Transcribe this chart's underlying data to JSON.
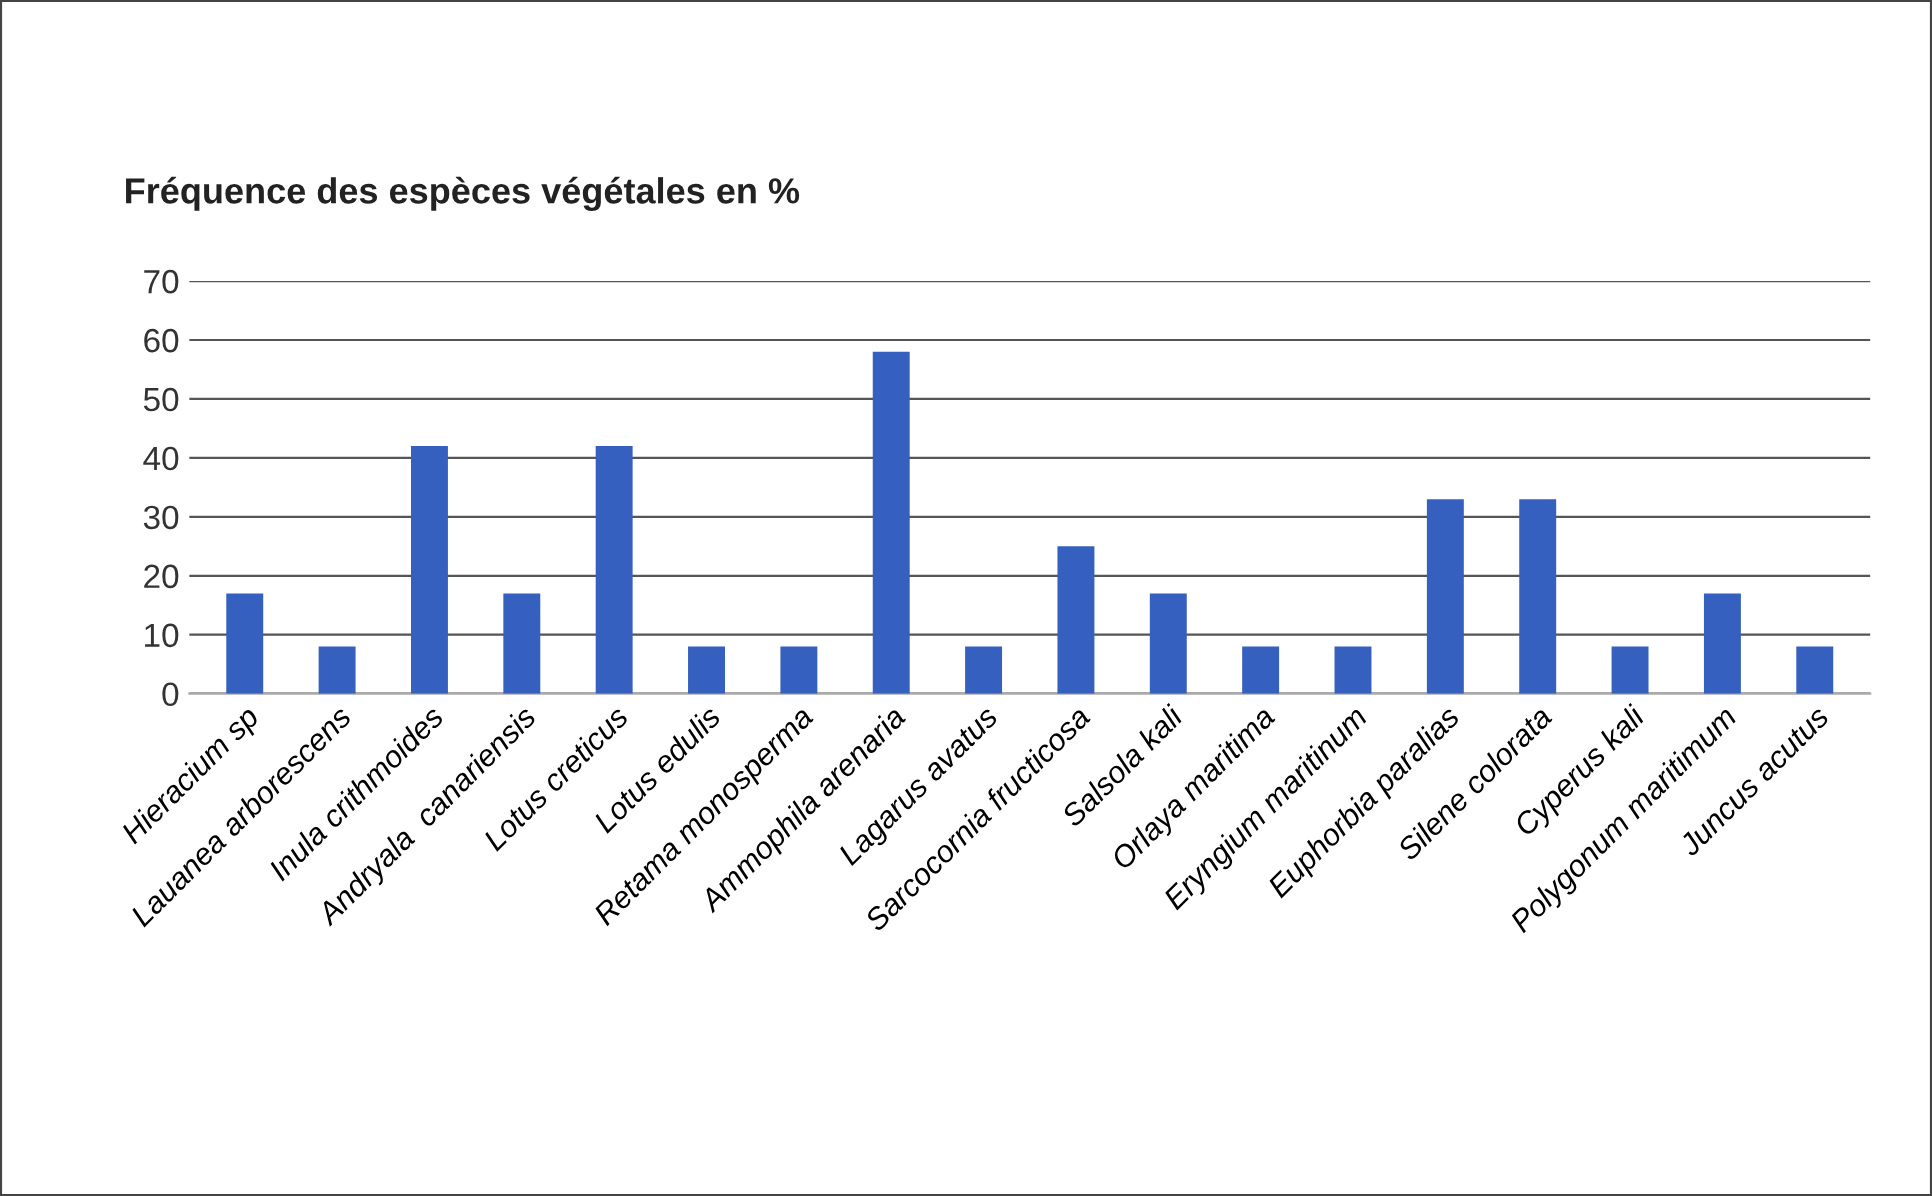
{
  "chart_data": {
    "type": "bar",
    "title": "Fréquence des espèces végétales en %",
    "categories": [
      "Hieracium sp",
      "Lauanea arborescens",
      "Inula crithmoides",
      "Andryala  canariensis",
      "Lotus creticus",
      "Lotus edulis",
      "Retama monosperma",
      "Ammophila arenaria",
      "Lagarus avatus",
      "Sarcocornia fructicosa",
      "Salsola kali",
      "Orlaya maritima",
      "Eryngium maritinum",
      "Euphorbia paralias",
      "Silene colorata",
      "Cyperus kali",
      "Polygonum maritimum",
      "Juncus acutus"
    ],
    "values": [
      17,
      8,
      42,
      17,
      42,
      8,
      8,
      58,
      8,
      25,
      17,
      8,
      8,
      33,
      33,
      8,
      17,
      8
    ],
    "color": "#3560c0",
    "ylim": [
      0,
      70
    ],
    "yticks": [
      0,
      10,
      20,
      30,
      40,
      50,
      60,
      70
    ],
    "grid": "y"
  }
}
